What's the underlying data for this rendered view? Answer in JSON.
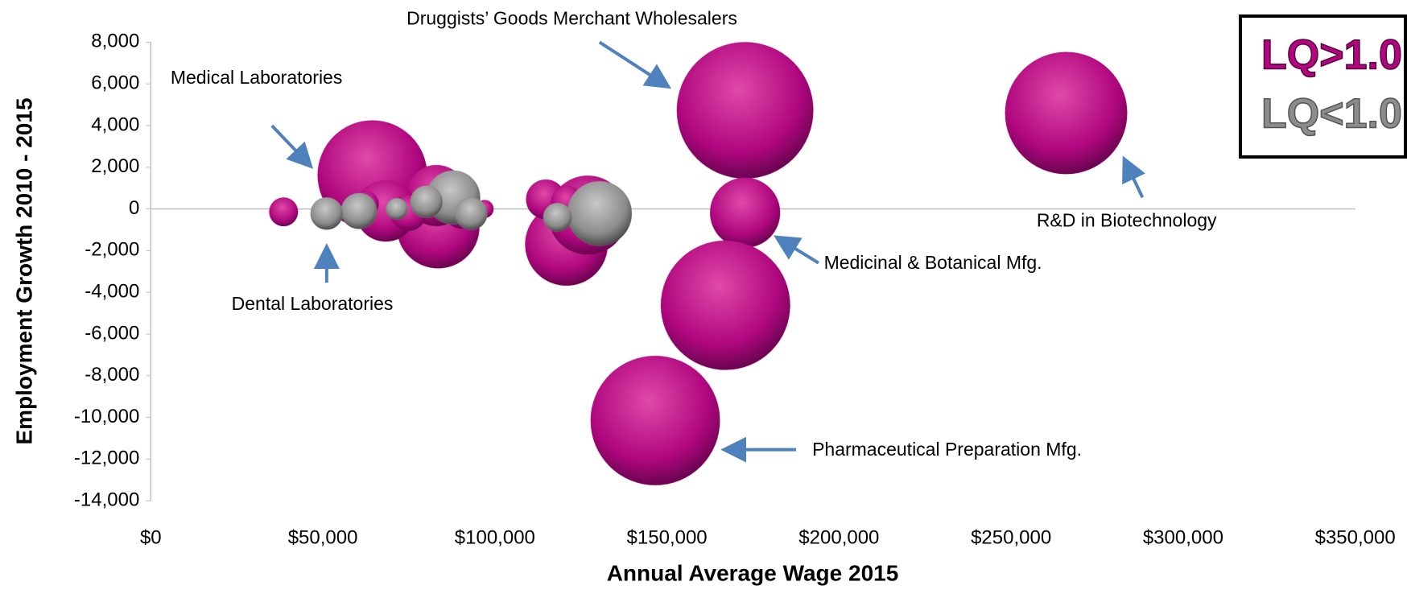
{
  "chart_data": {
    "type": "bubble",
    "xlabel": "Annual Average Wage 2015",
    "ylabel": "Employment Growth 2010 - 2015",
    "xlim": [
      0,
      350000
    ],
    "xticks": [
      {
        "value": 0,
        "label": "$0"
      },
      {
        "value": 50000,
        "label": "$50,000"
      },
      {
        "value": 100000,
        "label": "$100,000"
      },
      {
        "value": 150000,
        "label": "$150,000"
      },
      {
        "value": 200000,
        "label": "$200,000"
      },
      {
        "value": 250000,
        "label": "$250,000"
      },
      {
        "value": 300000,
        "label": "$300,000"
      },
      {
        "value": 350000,
        "label": "$350,000"
      }
    ],
    "ylim": [
      -14000,
      8000
    ],
    "yticks": [
      {
        "value": -14000,
        "label": "-14,000"
      },
      {
        "value": -12000,
        "label": "-12,000"
      },
      {
        "value": -10000,
        "label": "-10,000"
      },
      {
        "value": -8000,
        "label": "-8,000"
      },
      {
        "value": -6000,
        "label": "-6,000"
      },
      {
        "value": -4000,
        "label": "-4,000"
      },
      {
        "value": -2000,
        "label": "-2,000"
      },
      0,
      {
        "value": 2000,
        "label": "2,000"
      },
      {
        "value": 4000,
        "label": "4,000"
      },
      {
        "value": 6000,
        "label": "6,000"
      },
      {
        "value": 8000,
        "label": "8,000"
      }
    ],
    "series": [
      {
        "name": "LQ>1.0",
        "color": "#b0077f",
        "x": [
          172700,
          266000,
          64400,
          172700,
          167000,
          146600,
          120800,
          127000,
          114800,
          121000,
          83500,
          83000,
          90500,
          97000,
          68300,
          74900,
          62600,
          38600
        ],
        "values": [
          4730,
          4600,
          1620,
          -180,
          -4620,
          -10150,
          -1700,
          -300,
          460,
          330,
          -870,
          640,
          0,
          0,
          -100,
          -190,
          240,
          -140
        ],
        "sizes": [
          5776,
          4624,
          3721,
          1521,
          5184,
          5184,
          2116,
          1936,
          484,
          324,
          2116,
          1156,
          484,
          100,
          1156,
          400,
          196,
          256
        ]
      },
      {
        "name": "LQ<1.0",
        "color": "#8c8c8c",
        "x": [
          130400,
          118200,
          87900,
          93100,
          80100,
          71500,
          60500,
          51100
        ],
        "values": [
          -220,
          -400,
          550,
          -230,
          340,
          0,
          -100,
          -220
        ],
        "sizes": [
          1296,
          256,
          900,
          324,
          324,
          144,
          400,
          324
        ]
      }
    ],
    "annotations": [
      "Druggists’ Goods Merchant Wholesalers",
      "Medical Laboratories",
      "Dental Laboratories",
      "R&D in Biotechnology",
      "Medicinal & Botanical Mfg.",
      "Pharmaceutical Preparation Mfg."
    ]
  }
}
